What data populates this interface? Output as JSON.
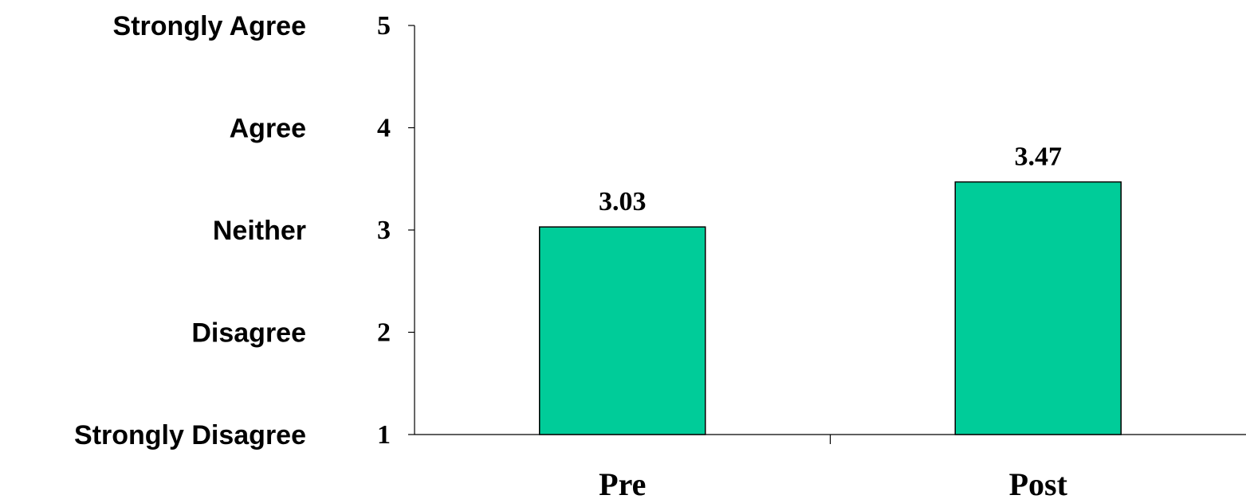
{
  "chart_data": {
    "type": "bar",
    "categories": [
      "Pre",
      "Post"
    ],
    "values": [
      3.03,
      3.47
    ],
    "data_labels": [
      "3.03",
      "3.47"
    ],
    "ylim": [
      1,
      5
    ],
    "yticks": [
      "1",
      "2",
      "3",
      "4",
      "5"
    ],
    "scale_labels": [
      "Strongly Disagree",
      "Disagree",
      "Neither",
      "Agree",
      "Strongly Agree"
    ],
    "title": "",
    "xlabel": "",
    "ylabel": "",
    "grid": false,
    "legend": "none",
    "bar_color": "#00CC99"
  }
}
